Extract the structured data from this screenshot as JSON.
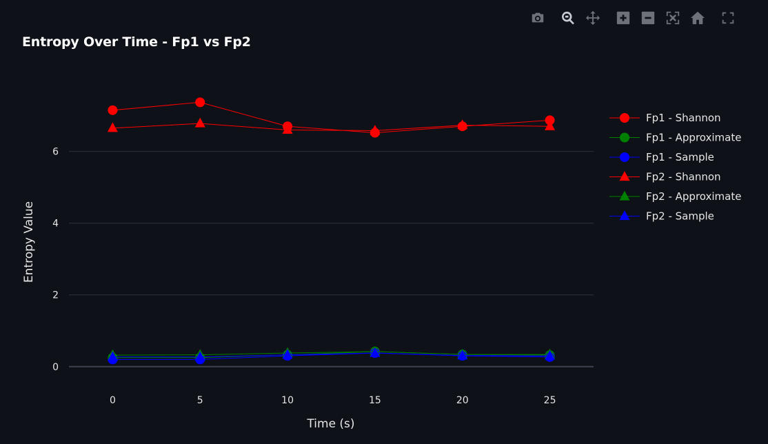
{
  "modebar": {
    "buttons": [
      {
        "name": "camera-icon",
        "title": "Download plot as a png"
      },
      {
        "name": "zoom-icon",
        "title": "Zoom"
      },
      {
        "name": "pan-icon",
        "title": "Pan"
      },
      {
        "name": "zoom-in-icon",
        "title": "Zoom in"
      },
      {
        "name": "zoom-out-icon",
        "title": "Zoom out"
      },
      {
        "name": "autoscale-icon",
        "title": "Autoscale"
      },
      {
        "name": "home-icon",
        "title": "Reset axes"
      },
      {
        "name": "fullscreen-icon",
        "title": "Fullscreen"
      }
    ]
  },
  "chart_data": {
    "type": "line",
    "title": "Entropy Over Time - Fp1 vs Fp2",
    "xlabel": "Time (s)",
    "ylabel": "Entropy Value",
    "x": [
      0,
      5,
      10,
      15,
      20,
      25
    ],
    "xticks": [
      0,
      5,
      10,
      15,
      20,
      25
    ],
    "yticks": [
      0,
      2,
      4,
      6
    ],
    "xlim": [
      -2.5,
      27.5
    ],
    "ylim": [
      -0.6,
      8.3
    ],
    "grid": "horizontal",
    "legend_position": "right",
    "series": [
      {
        "name": "Fp1 - Shannon",
        "color": "#ff0000",
        "marker": "circle",
        "values": [
          7.15,
          7.37,
          6.7,
          6.52,
          6.7,
          6.87
        ]
      },
      {
        "name": "Fp1 - Approximate",
        "color": "#008000",
        "marker": "circle",
        "values": [
          0.25,
          0.25,
          0.33,
          0.42,
          0.34,
          0.32
        ]
      },
      {
        "name": "Fp1 - Sample",
        "color": "#0000ff",
        "marker": "circle",
        "values": [
          0.2,
          0.2,
          0.3,
          0.38,
          0.3,
          0.27
        ]
      },
      {
        "name": "Fp2 - Shannon",
        "color": "#ff0000",
        "marker": "triangle",
        "values": [
          6.65,
          6.78,
          6.6,
          6.58,
          6.73,
          6.7
        ]
      },
      {
        "name": "Fp2 - Approximate",
        "color": "#008000",
        "marker": "triangle",
        "values": [
          0.32,
          0.33,
          0.38,
          0.42,
          0.34,
          0.34
        ]
      },
      {
        "name": "Fp2 - Sample",
        "color": "#0000ff",
        "marker": "triangle",
        "values": [
          0.27,
          0.27,
          0.33,
          0.38,
          0.31,
          0.3
        ]
      }
    ]
  }
}
